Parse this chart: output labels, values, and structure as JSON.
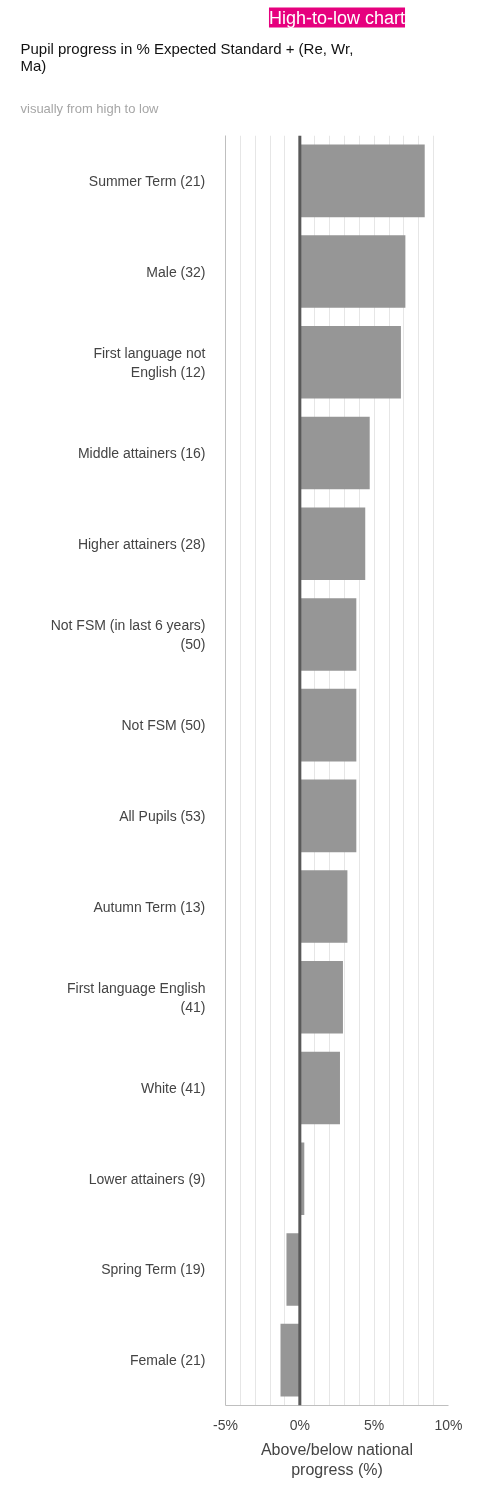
{
  "chart_data": {
    "type": "bar",
    "orientation": "horizontal",
    "title": "High-to-low chart",
    "subtitle": "Pupil progress in % Expected Standard + (Re, Wr, Ma)",
    "annotations": [
      "visually from high to low"
    ],
    "xlabel": "Above/below national progress (%)",
    "categories": [
      "Summer Term (21)",
      "Male (32)",
      "First language not English (12)",
      "Middle attainers (16)",
      "Higher attainers (28)",
      "Not FSM (in last 6 years) (50)",
      "Not FSM (50)",
      "All Pupils (53)",
      "Autumn Term (13)",
      "First language English (41)",
      "White (41)",
      "Lower attainers (9)",
      "Spring Term (19)",
      "Female (21)"
    ],
    "values": [
      8.4,
      7.1,
      6.8,
      4.7,
      4.4,
      3.8,
      3.8,
      3.8,
      3.2,
      2.9,
      2.7,
      0.3,
      -0.9,
      -1.3
    ],
    "color": "#969696",
    "xlim": [
      -5,
      10
    ],
    "xticks": [
      {
        "value": -5,
        "label": "-5%"
      },
      {
        "value": -4,
        "label": null
      },
      {
        "value": -3,
        "label": null
      },
      {
        "value": -2,
        "label": null
      },
      {
        "value": -1,
        "label": null
      },
      {
        "value": 0,
        "label": "0%"
      },
      {
        "value": 1,
        "label": null
      },
      {
        "value": 2,
        "label": null
      },
      {
        "value": 3,
        "label": null
      },
      {
        "value": 4,
        "label": null
      },
      {
        "value": 5,
        "label": "5%"
      },
      {
        "value": 6,
        "label": null
      },
      {
        "value": 7,
        "label": null
      },
      {
        "value": 8,
        "label": null
      },
      {
        "value": 9,
        "label": null
      },
      {
        "value": 10,
        "label": "10%"
      }
    ],
    "grid": "x",
    "ref_lines": [
      {
        "axis": "x",
        "value": 0,
        "color": "#595959"
      }
    ]
  }
}
